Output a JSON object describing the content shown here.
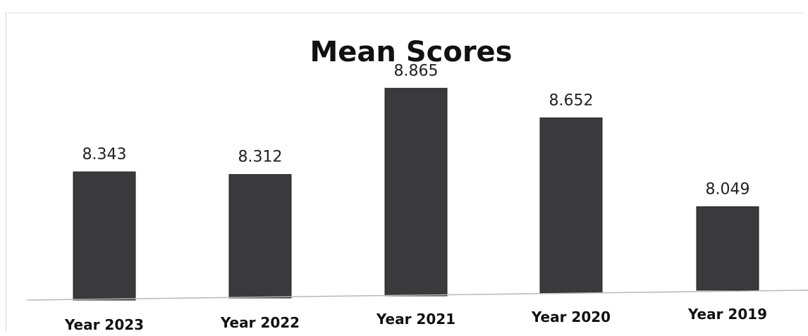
{
  "chart_data": {
    "type": "bar",
    "title": "Mean Scores",
    "categories": [
      "Year 2023",
      "Year 2022",
      "Year 2021",
      "Year 2020",
      "Year 2019"
    ],
    "values": [
      8.343,
      8.312,
      8.865,
      8.652,
      8.049
    ],
    "value_labels": [
      "8.343",
      "8.312",
      "8.865",
      "8.652",
      "8.049"
    ],
    "xlabel": "",
    "ylabel": "",
    "ylim": [
      7.5,
      9.0
    ],
    "grid": false,
    "legend": "none",
    "bar_color": "#3a3a3c"
  }
}
